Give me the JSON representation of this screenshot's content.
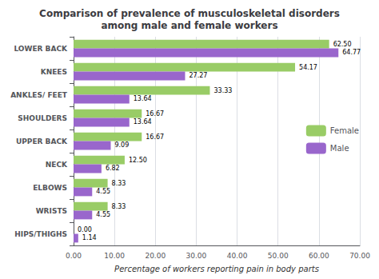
{
  "chart_data": {
    "type": "bar",
    "orientation": "horizontal",
    "title": "Comparison of prevalence of musculoskeletal disorders\namong male and female workers",
    "xlabel": "Percentage of workers reporting pain in body parts",
    "categories": [
      "LOWER BACK",
      "KNEES",
      "ANKLES/ FEET",
      "SHOULDERS",
      "UPPER BACK",
      "NECK",
      "ELBOWS",
      "WRISTS",
      "HIPS/THIGHS"
    ],
    "series": [
      {
        "name": "Female",
        "color": "#99cc66",
        "values": [
          62.5,
          54.17,
          33.33,
          16.67,
          16.67,
          12.5,
          8.33,
          8.33,
          0.0
        ],
        "value_labels": [
          "62.50",
          "54.17",
          "33.33",
          "16.67",
          "16.67",
          "12.50",
          "8.33",
          "8.33",
          "0.00"
        ]
      },
      {
        "name": "Male",
        "color": "#9966cc",
        "values": [
          64.77,
          27.27,
          13.64,
          13.64,
          9.09,
          6.82,
          4.55,
          4.55,
          1.14
        ],
        "value_labels": [
          "64.77",
          "27.27",
          "13.64",
          "13.64",
          "9.09",
          "6.82",
          "4.55",
          "4.55",
          "1.14"
        ]
      }
    ],
    "xlim": [
      0,
      70
    ],
    "xticks": [
      {
        "value": 0,
        "label": "0.00"
      },
      {
        "value": 10,
        "label": "10.00"
      },
      {
        "value": 20,
        "label": "20.00"
      },
      {
        "value": 30,
        "label": "30.00"
      },
      {
        "value": 40,
        "label": "40.00"
      },
      {
        "value": 50,
        "label": "50.00"
      },
      {
        "value": 60,
        "label": "60.00"
      },
      {
        "value": 70,
        "label": "70.00"
      }
    ],
    "grid": true,
    "legend": "right",
    "data_labels": true
  }
}
